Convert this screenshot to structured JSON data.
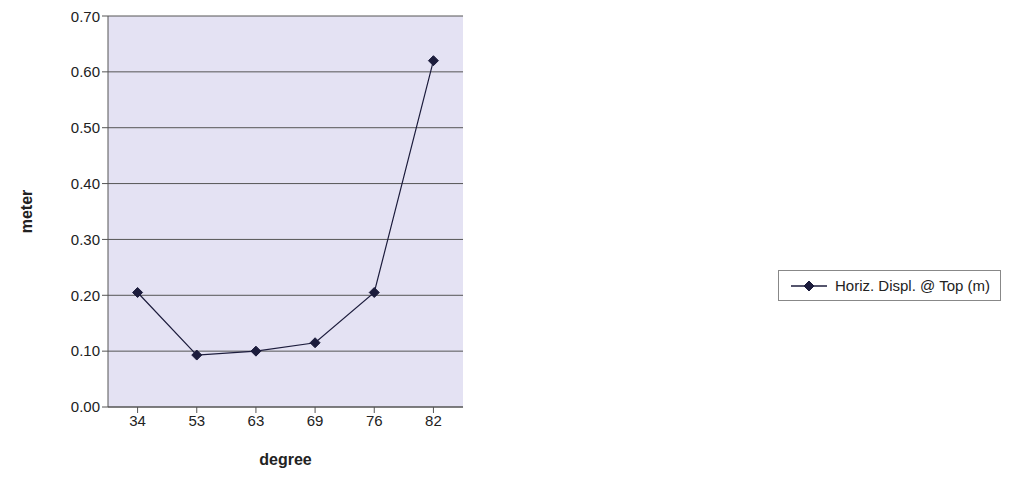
{
  "chart_data": {
    "type": "line",
    "x_label": "degree",
    "y_label": "meter",
    "categories": [
      "34",
      "53",
      "63",
      "69",
      "76",
      "82"
    ],
    "series": [
      {
        "name": "Horiz. Displ. @ Top (m)",
        "color": "#1c1c3c",
        "marker": "diamond",
        "values": [
          0.205,
          0.093,
          0.1,
          0.115,
          0.205,
          0.62
        ]
      }
    ],
    "ylim": [
      0,
      0.7
    ],
    "yticks": [
      {
        "value": 0,
        "label": "0.00"
      },
      {
        "value": 0.1,
        "label": "0.10"
      },
      {
        "value": 0.2,
        "label": "0.20"
      },
      {
        "value": 0.3,
        "label": "0.30"
      },
      {
        "value": 0.4,
        "label": "0.40"
      },
      {
        "value": 0.5,
        "label": "0.50"
      },
      {
        "value": 0.6,
        "label": "0.60"
      },
      {
        "value": 0.7,
        "label": "0.70"
      }
    ],
    "grid": true,
    "legend": "right"
  }
}
